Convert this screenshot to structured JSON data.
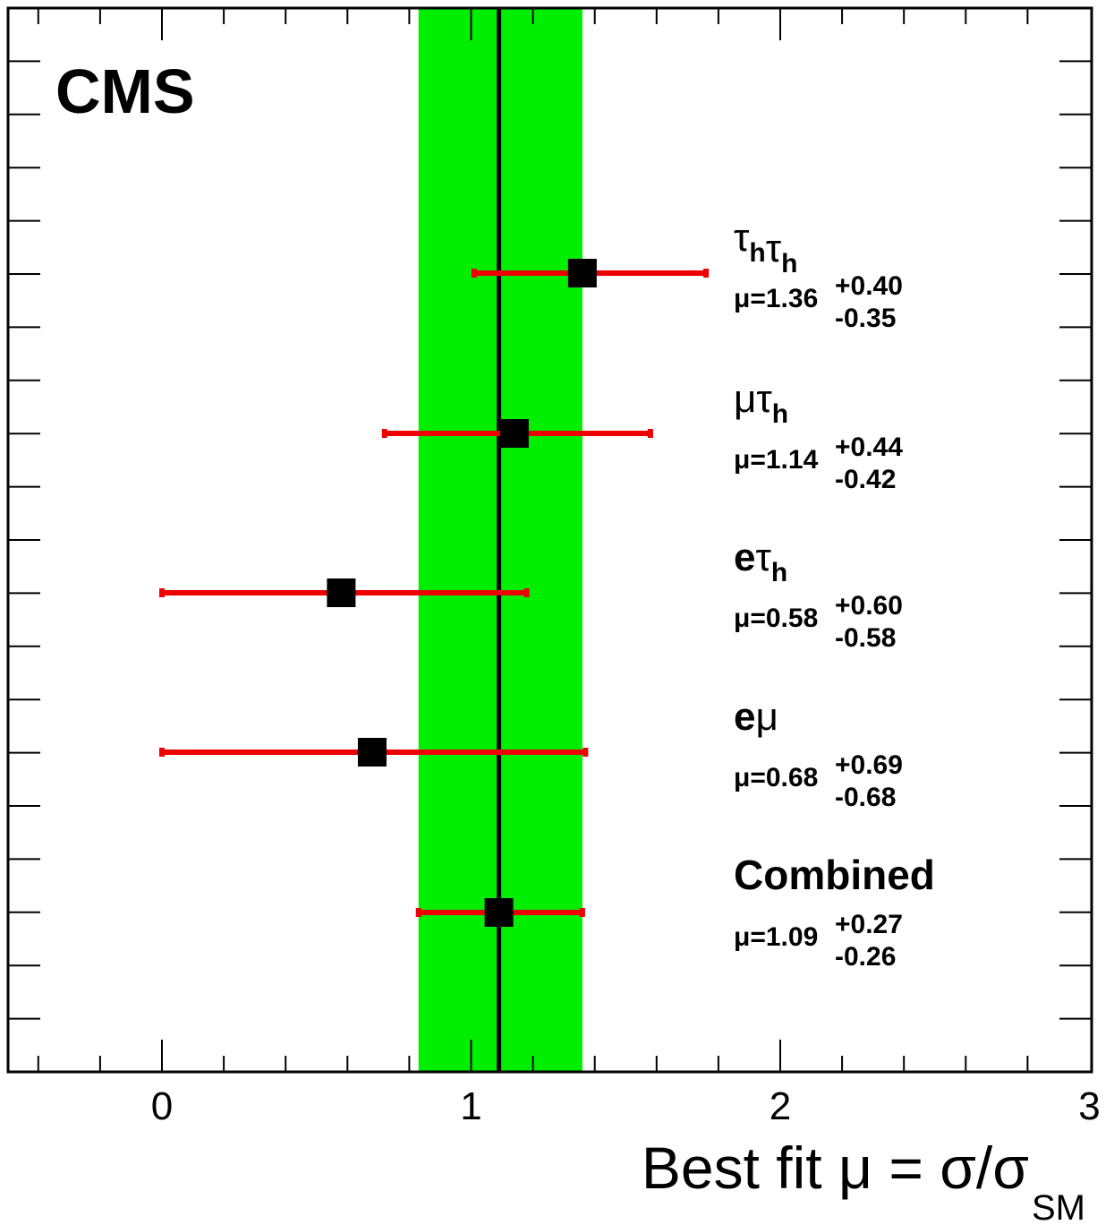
{
  "chart_data": {
    "type": "scatter",
    "experiment_label": "CMS",
    "xlabel": {
      "main": "Best fit μ = σ/σ",
      "subscript": "SM"
    },
    "xlim": [
      -0.5,
      3.0
    ],
    "x_ticks": [
      {
        "value": 0,
        "label": "0"
      },
      {
        "value": 1,
        "label": "1"
      },
      {
        "value": 2,
        "label": "2"
      },
      {
        "value": 3,
        "label": "3"
      }
    ],
    "combined_band": {
      "center": 1.09,
      "low": 0.83,
      "high": 1.36,
      "color": "#00ee00"
    },
    "line_color": "#000000",
    "errorbar_color": "#ee0000",
    "marker_color": "#000000",
    "channels": [
      {
        "name_parts": [
          {
            "text": "τ",
            "sub": "h"
          },
          {
            "text": "τ",
            "sub": "h"
          }
        ],
        "mu_label": "μ=1.36",
        "up": "+0.40",
        "down": "-0.35",
        "value": 1.36,
        "low": 1.01,
        "high": 1.76
      },
      {
        "name_parts": [
          {
            "text": "μ",
            "sub": ""
          },
          {
            "text": "τ",
            "sub": "h"
          }
        ],
        "mu_label": "μ=1.14",
        "up": "+0.44",
        "down": "-0.42",
        "value": 1.14,
        "low": 0.72,
        "high": 1.58
      },
      {
        "name_parts": [
          {
            "text": "e",
            "sub": "",
            "bold": true
          },
          {
            "text": "τ",
            "sub": "h"
          }
        ],
        "mu_label": "μ=0.58",
        "up": "+0.60",
        "down": "-0.58",
        "value": 0.58,
        "low": 0.0,
        "high": 1.18
      },
      {
        "name_parts": [
          {
            "text": "e",
            "sub": "",
            "bold": true
          },
          {
            "text": "μ",
            "sub": ""
          }
        ],
        "mu_label": "μ=0.68",
        "up": "+0.69",
        "down": "-0.68",
        "value": 0.68,
        "low": 0.0,
        "high": 1.37
      },
      {
        "name_parts": [
          {
            "text": "Combined",
            "sub": "",
            "bold": true
          }
        ],
        "mu_label": "μ=1.09",
        "up": "+0.27",
        "down": "-0.26",
        "value": 1.09,
        "low": 0.83,
        "high": 1.36
      }
    ]
  }
}
